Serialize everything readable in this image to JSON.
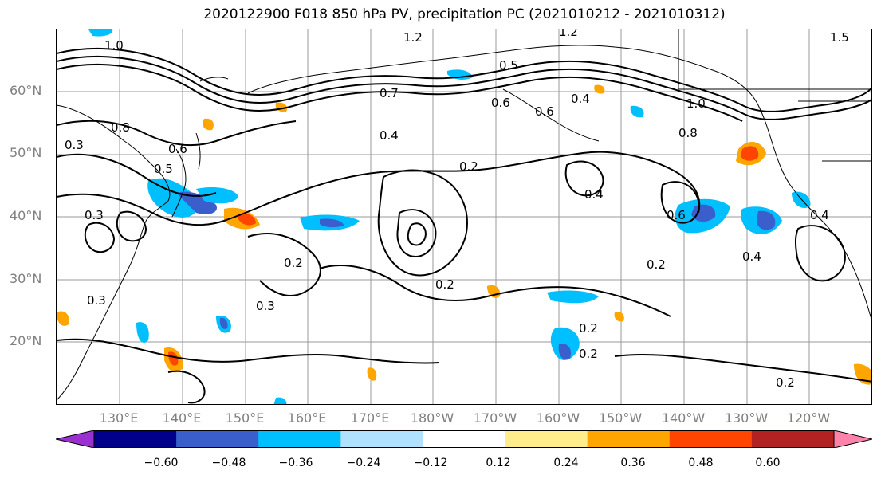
{
  "title": "2020122900 F018 850 hPa PV, precipitation PC (2021010212 - 2021010312)",
  "lat_labels": [
    "60°N",
    "50°N",
    "40°N",
    "30°N",
    "20°N"
  ],
  "lon_labels": [
    "130°E",
    "140°E",
    "150°E",
    "160°E",
    "170°E",
    "180°W",
    "170°W",
    "160°W",
    "150°W",
    "140°W",
    "130°W",
    "120°W"
  ],
  "contour_labels": [
    "1.0",
    "1.2",
    "1.2",
    "1.5",
    "0.5",
    "0.7",
    "0.6",
    "0.4",
    "1.0",
    "0.8",
    "0.4",
    "0.2",
    "0.4",
    "0.6",
    "0.4",
    "0.3",
    "0.5",
    "0.2",
    "0.2",
    "0.3",
    "0.3",
    "0.2",
    "0.2",
    "0.2",
    "0.2",
    "0.8",
    "0.6",
    "0.3",
    "0.4",
    "0.6"
  ],
  "colorbar": {
    "colors": [
      "#9b30d0",
      "#00008b",
      "#3a5fcd",
      "#00bfff",
      "#b0e2ff",
      "#ffffff",
      "#ffec8b",
      "#ffa500",
      "#ff4500",
      "#b22222",
      "#ff82ab"
    ],
    "ticks": [
      "−0.60",
      "−0.48",
      "−0.36",
      "−0.24",
      "−0.12",
      "0.12",
      "0.24",
      "0.36",
      "0.48",
      "0.60"
    ]
  }
}
